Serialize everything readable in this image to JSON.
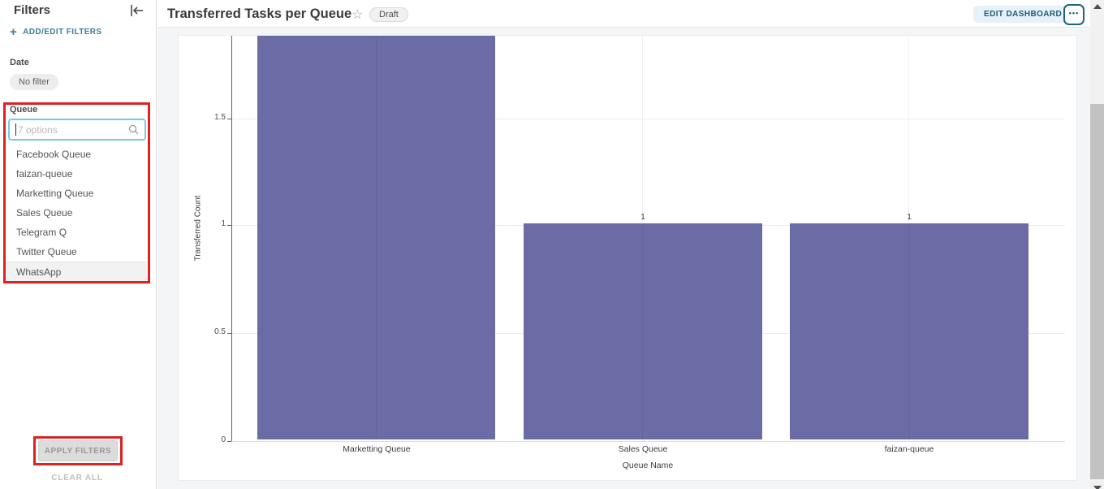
{
  "sidebar": {
    "title": "Filters",
    "add_edit_filters": "ADD/EDIT FILTERS",
    "plus": "+",
    "date": {
      "label": "Date",
      "value": "No filter"
    },
    "queue": {
      "label": "Queue",
      "search_placeholder": "7 options",
      "options": [
        "Facebook Queue",
        "faizan-queue",
        "Marketting Queue",
        "Sales Queue",
        "Telegram Q",
        "Twitter Queue",
        "WhatsApp"
      ],
      "highlighted_option": "WhatsApp"
    },
    "apply_button": "APPLY FILTERS",
    "clear_all": "CLEAR ALL"
  },
  "header": {
    "title": "Transferred Tasks per Queue",
    "status_badge": "Draft",
    "edit_button": "EDIT DASHBOARD",
    "more_button": "•••"
  },
  "chart_data": {
    "type": "bar",
    "title": "Transferred Tasks per Queue",
    "categories": [
      "Marketting Queue",
      "Sales Queue",
      "faizan-queue"
    ],
    "values": [
      2,
      1,
      1
    ],
    "shown_value_labels": [
      "",
      "1",
      "1"
    ],
    "xlabel": "Queue Name",
    "ylabel": "Transferred Count",
    "ytick_labels": [
      "1.5",
      "1",
      "0.5",
      "0"
    ],
    "ylim_visible": [
      0,
      1.88
    ],
    "grid": true,
    "legend": "none",
    "bar_color": "#6b6ca5",
    "note": "First bar (value 2) is clipped at the top edge of the scrolled viewport; value labels visible only for Sales Queue and faizan-queue."
  },
  "annotations": {
    "color": "#dd2222",
    "boxes": [
      "queue-filter-section",
      "apply-filters-button"
    ]
  },
  "colors": {
    "accent_teal_link": "#3b7e9c",
    "input_border": "#72cbe9",
    "edit_button_bg": "#e7f1f9",
    "edit_button_text": "#1a5a75",
    "bar": "#6b6ca5",
    "annotation_red": "#dd2222"
  }
}
